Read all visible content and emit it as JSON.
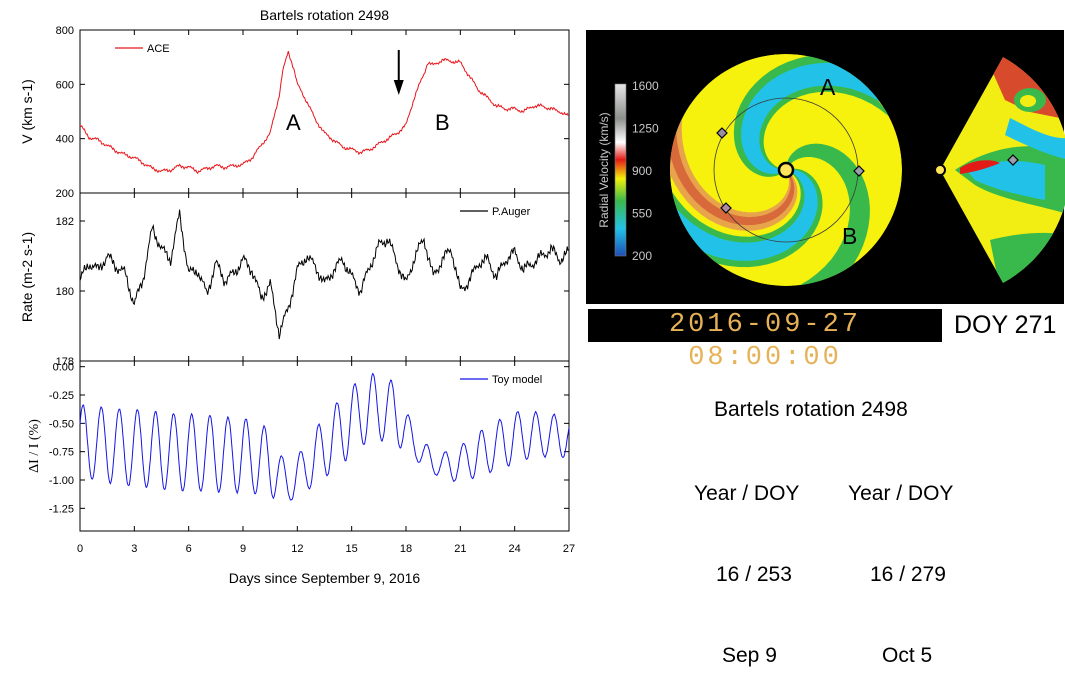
{
  "chart_data": [
    {
      "type": "line",
      "title": "Bartels rotation 2498",
      "ylabel": "V (km s-1)",
      "ylim": [
        200,
        800
      ],
      "yticks": [
        200,
        400,
        600,
        800
      ],
      "legend": "ACE",
      "legend_position": "top-left",
      "color": "#e8161b",
      "annotations": [
        "A",
        "B"
      ],
      "arrow_at_x": 17.6,
      "x": [
        0,
        0.5,
        1,
        1.5,
        2,
        2.5,
        3,
        3.5,
        4,
        4.5,
        5,
        5.5,
        6,
        6.5,
        7,
        7.5,
        8,
        8.5,
        9,
        9.5,
        10,
        10.5,
        11,
        11.2,
        11.5,
        11.8,
        12,
        12.5,
        13,
        13.5,
        14,
        14.5,
        15,
        15.5,
        16,
        16.5,
        17,
        17.5,
        18,
        18.5,
        19,
        19.2,
        19.5,
        20,
        20.5,
        21,
        21.5,
        22,
        22.5,
        23,
        23.5,
        24,
        24.5,
        25,
        25.5,
        26,
        26.5,
        27
      ],
      "y": [
        450,
        405,
        395,
        375,
        355,
        340,
        330,
        310,
        290,
        280,
        285,
        300,
        295,
        280,
        290,
        300,
        295,
        300,
        305,
        330,
        375,
        420,
        560,
        650,
        720,
        660,
        600,
        540,
        470,
        420,
        395,
        370,
        360,
        350,
        360,
        380,
        400,
        420,
        450,
        560,
        640,
        680,
        670,
        690,
        685,
        680,
        630,
        580,
        550,
        520,
        510,
        510,
        500,
        520,
        520,
        510,
        500,
        480
      ]
    },
    {
      "type": "line",
      "ylabel": "Rate (m-2 s-1)",
      "ylim": [
        178,
        182.8
      ],
      "yticks": [
        178,
        180,
        182
      ],
      "legend": "P.Auger",
      "legend_position": "top-right",
      "color": "#000000",
      "x": [
        0,
        0.5,
        1,
        1.5,
        2,
        2.5,
        3,
        3.5,
        4,
        4.5,
        5,
        5.5,
        6,
        6.5,
        7,
        7.5,
        8,
        8.5,
        9,
        9.5,
        10,
        10.5,
        11,
        11.5,
        12,
        12.5,
        13,
        13.5,
        14,
        14.5,
        15,
        15.5,
        16,
        16.5,
        17,
        17.5,
        18,
        18.5,
        19,
        19.5,
        20,
        20.5,
        21,
        21.5,
        22,
        22.5,
        23,
        23.5,
        24,
        24.5,
        25,
        25.5,
        26,
        26.5,
        27
      ],
      "y": [
        180.3,
        180.8,
        180.6,
        181.0,
        180.7,
        180.5,
        179.6,
        180.4,
        181.8,
        181.2,
        180.9,
        182.2,
        180.5,
        180.6,
        179.9,
        180.8,
        180.3,
        180.5,
        180.9,
        180.6,
        179.8,
        180.2,
        178.8,
        179.5,
        180.6,
        181.0,
        180.7,
        180.2,
        180.6,
        180.9,
        180.4,
        180.0,
        180.7,
        181.3,
        181.5,
        180.8,
        180.2,
        181.0,
        181.5,
        180.4,
        180.9,
        181.2,
        180.0,
        180.3,
        180.8,
        180.9,
        180.4,
        180.9,
        181.1,
        180.6,
        180.8,
        181.0,
        181.2,
        180.9,
        181.1
      ]
    },
    {
      "type": "line",
      "ylabel": "ΔI / I  (%)",
      "ylim": [
        -1.45,
        0.05
      ],
      "yticks": [
        -1.25,
        -1.0,
        -0.75,
        -0.5,
        -0.25,
        0.0
      ],
      "legend": "Toy model",
      "legend_position": "top-right",
      "color": "#1515e6",
      "xlabel": "Days since September 9, 2016",
      "xlim": [
        0,
        27
      ],
      "xticks": [
        0,
        3,
        6,
        9,
        12,
        15,
        18,
        21,
        24,
        27
      ],
      "oscillation": "daily cycle, baseline-modulated",
      "baseline_x": [
        0,
        3,
        6,
        9,
        10.5,
        11.5,
        13,
        14.5,
        15.5,
        16.5,
        17.5,
        18.5,
        19.5,
        20.5,
        22,
        24,
        25,
        27
      ],
      "baseline_y": [
        -0.66,
        -0.72,
        -0.76,
        -0.78,
        -0.85,
        -1.05,
        -0.8,
        -0.55,
        -0.4,
        -0.35,
        -0.42,
        -0.7,
        -0.85,
        -0.88,
        -0.78,
        -0.62,
        -0.6,
        -0.62
      ],
      "amplitude_y": [
        0.32,
        0.34,
        0.34,
        0.33,
        0.3,
        0.14,
        0.25,
        0.3,
        0.3,
        0.3,
        0.27,
        0.12,
        0.1,
        0.13,
        0.2,
        0.23,
        0.2,
        0.18
      ]
    }
  ],
  "panel": {
    "colorbar_label": "Radial Velocity (km/s)",
    "colorbar_ticks": [
      "1600",
      "1250",
      "900",
      "550",
      "200"
    ],
    "region_a": "A",
    "region_b": "B",
    "timestamp": "2016-09-27 08:00:00",
    "doy": "DOY 271"
  },
  "info": {
    "title": "Bartels rotation 2498",
    "col1": {
      "head": "Year / DOY",
      "doy": "16 / 253",
      "date": "Sep 9"
    },
    "col2": {
      "head": "Year / DOY",
      "doy": "16 / 279",
      "date": "Oct 5"
    }
  }
}
